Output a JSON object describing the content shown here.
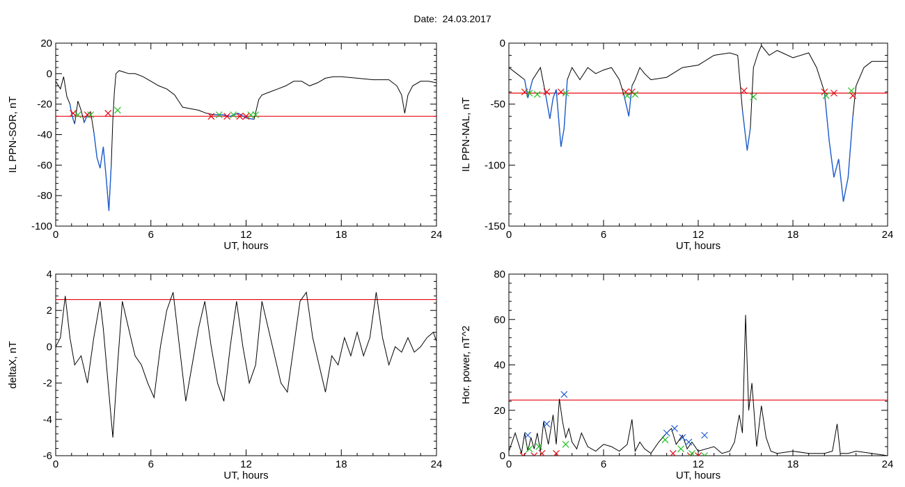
{
  "figure": {
    "title": "Date:  24.03.2017"
  },
  "colors": {
    "trace": "#000000",
    "threshold": "#e8000b",
    "highlight": "#1f5fd0",
    "x_red": "#e8000b",
    "x_green": "#1fbf1f",
    "x_blue": "#1f5fd0"
  },
  "chart_data": [
    {
      "type": "line",
      "xlabel": "UT, hours",
      "ylabel": "IL PPN-SOR, nT",
      "xlim": [
        0,
        24
      ],
      "ylim": [
        -100,
        20
      ],
      "xticks": [
        0,
        6,
        12,
        18,
        24
      ],
      "yticks": [
        -100,
        -80,
        -60,
        -40,
        -20,
        0,
        20
      ],
      "threshold": -28,
      "series": [
        {
          "x": [
            0,
            0.3,
            0.5,
            0.7,
            0.9,
            1.0,
            1.1,
            1.2,
            1.4,
            1.6,
            1.8,
            2.0,
            2.2,
            2.4,
            2.6,
            2.8,
            3.0,
            3.2,
            3.35,
            3.5,
            3.6,
            3.7,
            3.8,
            4.0,
            4.3,
            4.6,
            5.0,
            5.5,
            6.0,
            6.5,
            7.0,
            7.5,
            8.0,
            8.5,
            9.0,
            9.5,
            10.0,
            10.5,
            11.0,
            11.5,
            12.0,
            12.5,
            12.8,
            13.0,
            13.5,
            14.0,
            14.5,
            15.0,
            15.5,
            16.0,
            16.5,
            17.0,
            17.5,
            18.0,
            19.0,
            20.0,
            21.0,
            21.5,
            21.8,
            22.0,
            22.2,
            22.5,
            23.0,
            23.5,
            24.0
          ],
          "y": [
            -5,
            -10,
            -2,
            -15,
            -20,
            -26,
            -30,
            -33,
            -18,
            -24,
            -32,
            -27,
            -25,
            -38,
            -55,
            -62,
            -48,
            -70,
            -90,
            -60,
            -30,
            -12,
            0,
            2,
            1,
            0,
            0,
            -2,
            -5,
            -8,
            -10,
            -14,
            -22,
            -23,
            -24,
            -26,
            -27,
            -27,
            -28,
            -26,
            -29,
            -30,
            -17,
            -14,
            -12,
            -10,
            -8,
            -5,
            -5,
            -8,
            -6,
            -3,
            -2,
            -2,
            -3,
            -4,
            -4,
            -8,
            -14,
            -26,
            -14,
            -8,
            -5,
            -5,
            -6
          ]
        }
      ],
      "highlight_segments": [
        {
          "x": [
            0.9,
            1.0,
            1.1,
            1.2
          ],
          "y": [
            -20,
            -26,
            -30,
            -33
          ]
        },
        {
          "x": [
            1.8,
            2.0,
            2.2
          ],
          "y": [
            -32,
            -27,
            -25
          ]
        },
        {
          "x": [
            2.4,
            2.6,
            2.8,
            3.0,
            3.2,
            3.35,
            3.5
          ],
          "y": [
            -38,
            -55,
            -62,
            -48,
            -70,
            -90,
            -60
          ]
        },
        {
          "x": [
            10.0,
            10.5,
            11.0,
            11.5,
            12.0,
            12.5
          ],
          "y": [
            -27,
            -27,
            -28,
            -26,
            -29,
            -30
          ]
        }
      ],
      "markers_red": [
        [
          1.1,
          -26
        ],
        [
          2.0,
          -27
        ],
        [
          3.3,
          -26
        ],
        [
          9.8,
          -28
        ],
        [
          10.8,
          -28
        ],
        [
          11.6,
          -28
        ],
        [
          12.0,
          -28
        ]
      ],
      "markers_green": [
        [
          1.4,
          -27
        ],
        [
          2.2,
          -27
        ],
        [
          3.9,
          -24
        ],
        [
          10.3,
          -27
        ],
        [
          11.2,
          -27
        ],
        [
          12.3,
          -27
        ],
        [
          12.6,
          -27
        ]
      ],
      "markers_blue": []
    },
    {
      "type": "line",
      "xlabel": "UT, hours",
      "ylabel": "IL PPN-NAL, nT",
      "xlim": [
        0,
        24
      ],
      "ylim": [
        -150,
        0
      ],
      "xticks": [
        0,
        6,
        12,
        18,
        24
      ],
      "yticks": [
        -150,
        -100,
        -50,
        0
      ],
      "threshold": -41,
      "series": [
        {
          "x": [
            0,
            0.5,
            1.0,
            1.2,
            1.5,
            2.0,
            2.3,
            2.6,
            2.8,
            3.0,
            3.3,
            3.5,
            3.7,
            4.0,
            4.5,
            5.0,
            5.5,
            6.0,
            6.5,
            7.0,
            7.3,
            7.6,
            7.8,
            8.0,
            8.3,
            8.6,
            9.0,
            10.0,
            11.0,
            12.0,
            13.0,
            14.0,
            14.5,
            14.8,
            15.1,
            15.3,
            15.5,
            15.8,
            16.0,
            16.5,
            17.0,
            18.0,
            19.0,
            19.5,
            20.0,
            20.3,
            20.6,
            20.9,
            21.2,
            21.5,
            21.8,
            22.0,
            22.5,
            23.0,
            23.5,
            24.0
          ],
          "y": [
            -20,
            -25,
            -30,
            -45,
            -30,
            -20,
            -40,
            -62,
            -45,
            -38,
            -85,
            -70,
            -30,
            -20,
            -30,
            -20,
            -25,
            -22,
            -20,
            -30,
            -43,
            -60,
            -35,
            -30,
            -20,
            -25,
            -30,
            -28,
            -20,
            -18,
            -10,
            -8,
            -10,
            -55,
            -88,
            -70,
            -20,
            -8,
            -2,
            -10,
            -6,
            -12,
            -8,
            -20,
            -40,
            -80,
            -110,
            -95,
            -130,
            -110,
            -60,
            -35,
            -20,
            -15,
            -15,
            -15
          ]
        }
      ],
      "highlight_segments": [
        {
          "x": [
            1.0,
            1.2,
            1.5
          ],
          "y": [
            -30,
            -45,
            -30
          ]
        },
        {
          "x": [
            2.3,
            2.6,
            2.8,
            3.0,
            3.3,
            3.5,
            3.7
          ],
          "y": [
            -40,
            -62,
            -45,
            -38,
            -85,
            -70,
            -30
          ]
        },
        {
          "x": [
            7.3,
            7.6,
            7.8
          ],
          "y": [
            -43,
            -60,
            -35
          ]
        },
        {
          "x": [
            14.8,
            15.1,
            15.3
          ],
          "y": [
            -55,
            -88,
            -70
          ]
        },
        {
          "x": [
            20.0,
            20.3,
            20.6,
            20.9,
            21.2,
            21.5,
            21.8
          ],
          "y": [
            -40,
            -80,
            -110,
            -95,
            -130,
            -110,
            -60
          ]
        }
      ],
      "markers_red": [
        [
          1.0,
          -40
        ],
        [
          2.4,
          -40
        ],
        [
          3.3,
          -40
        ],
        [
          7.4,
          -40
        ],
        [
          7.8,
          -40
        ],
        [
          14.9,
          -39
        ],
        [
          20.0,
          -40
        ],
        [
          20.6,
          -41
        ],
        [
          21.8,
          -43
        ]
      ],
      "markers_green": [
        [
          1.3,
          -41
        ],
        [
          1.8,
          -42
        ],
        [
          3.6,
          -41
        ],
        [
          7.5,
          -43
        ],
        [
          8.0,
          -42
        ],
        [
          15.5,
          -44
        ],
        [
          20.1,
          -43
        ],
        [
          21.7,
          -39
        ]
      ],
      "markers_blue": []
    },
    {
      "type": "line",
      "xlabel": "UT, hours",
      "ylabel": "deltaX, nT",
      "xlim": [
        0,
        24
      ],
      "ylim": [
        -6,
        4
      ],
      "xticks": [
        0,
        6,
        12,
        18,
        24
      ],
      "yticks": [
        -6,
        -4,
        -2,
        0,
        2,
        4
      ],
      "threshold": 2.6,
      "series": [
        {
          "x": [
            0,
            0.3,
            0.6,
            0.9,
            1.2,
            1.6,
            2.0,
            2.4,
            2.8,
            3.0,
            3.3,
            3.6,
            3.9,
            4.2,
            4.6,
            5.0,
            5.4,
            5.8,
            6.2,
            6.6,
            7.0,
            7.4,
            7.8,
            8.2,
            8.6,
            9.0,
            9.4,
            9.8,
            10.2,
            10.6,
            11.0,
            11.4,
            11.8,
            12.2,
            12.6,
            13.0,
            13.4,
            13.8,
            14.2,
            14.6,
            15.0,
            15.4,
            15.8,
            16.2,
            16.6,
            17.0,
            17.4,
            17.8,
            18.2,
            18.6,
            19.0,
            19.4,
            19.8,
            20.2,
            20.6,
            21.0,
            21.4,
            21.8,
            22.2,
            22.6,
            23.0,
            23.4,
            23.8,
            24.0
          ],
          "y": [
            0,
            0.5,
            2.8,
            0.5,
            -1,
            -0.5,
            -2,
            0.5,
            2.5,
            1,
            -2,
            -5,
            -1,
            2.5,
            1,
            -0.5,
            -1,
            -2,
            -2.8,
            0,
            2,
            3,
            0,
            -3,
            -1,
            1,
            2.5,
            0,
            -2,
            -3,
            0,
            2.5,
            0,
            -2,
            -1,
            2.5,
            1,
            -0.5,
            -2,
            -2.5,
            0,
            2.5,
            3,
            0.5,
            -1,
            -2.5,
            -0.5,
            -1,
            0.5,
            -0.5,
            0.8,
            -0.5,
            0.5,
            3,
            0.5,
            -1,
            0,
            -0.3,
            0.5,
            -0.3,
            0,
            0.5,
            0.8,
            0.3
          ]
        }
      ],
      "highlight_segments": [],
      "markers_red": [],
      "markers_green": [],
      "markers_blue": []
    },
    {
      "type": "line",
      "xlabel": "UT, hours",
      "ylabel": "Hor. power, nT^2",
      "xlim": [
        0,
        24
      ],
      "ylim": [
        0,
        80
      ],
      "xticks": [
        0,
        6,
        12,
        18,
        24
      ],
      "yticks": [
        0,
        20,
        40,
        60,
        80
      ],
      "threshold": 24.5,
      "series": [
        {
          "x": [
            0,
            0.4,
            0.8,
            1.0,
            1.2,
            1.4,
            1.6,
            1.8,
            2.0,
            2.2,
            2.5,
            2.8,
            3.0,
            3.2,
            3.4,
            3.6,
            3.8,
            4.0,
            4.3,
            4.6,
            5.0,
            5.5,
            6.0,
            6.5,
            7.0,
            7.5,
            7.8,
            8.0,
            8.3,
            8.6,
            9.0,
            9.5,
            10.0,
            10.3,
            10.6,
            11.0,
            11.3,
            11.6,
            12.0,
            12.5,
            13.0,
            13.5,
            14.0,
            14.3,
            14.6,
            14.8,
            15.0,
            15.2,
            15.4,
            15.7,
            16.0,
            16.3,
            16.6,
            17.0,
            18.0,
            19.0,
            20.0,
            20.5,
            20.8,
            21.0,
            21.5,
            22.0,
            23.0,
            24.0
          ],
          "y": [
            2,
            10,
            1,
            10,
            2,
            8,
            3,
            10,
            2,
            15,
            5,
            18,
            5,
            25,
            15,
            8,
            12,
            6,
            3,
            10,
            4,
            2,
            5,
            4,
            2,
            5,
            16,
            2,
            6,
            3,
            1,
            6,
            10,
            12,
            5,
            9,
            3,
            6,
            2,
            3,
            4,
            1,
            2,
            6,
            18,
            10,
            62,
            20,
            32,
            4,
            22,
            8,
            2,
            1,
            2,
            1,
            1,
            2,
            14,
            1,
            1,
            2,
            1,
            0
          ]
        }
      ],
      "highlight_segments": [],
      "markers_red": [
        [
          0.9,
          0
        ],
        [
          1.6,
          0
        ],
        [
          2.1,
          1
        ],
        [
          3.0,
          1
        ],
        [
          10.4,
          1
        ],
        [
          11.5,
          0
        ],
        [
          12.0,
          0
        ]
      ],
      "markers_green": [
        [
          1.3,
          3
        ],
        [
          1.9,
          4
        ],
        [
          3.6,
          5
        ],
        [
          9.9,
          7
        ],
        [
          10.9,
          3
        ],
        [
          11.6,
          1
        ],
        [
          12.4,
          0
        ]
      ],
      "markers_blue": [
        [
          1.2,
          9
        ],
        [
          2.4,
          14
        ],
        [
          3.5,
          27
        ],
        [
          10.0,
          10
        ],
        [
          10.5,
          12
        ],
        [
          11.0,
          8
        ],
        [
          11.4,
          6
        ],
        [
          12.4,
          9
        ]
      ]
    }
  ]
}
